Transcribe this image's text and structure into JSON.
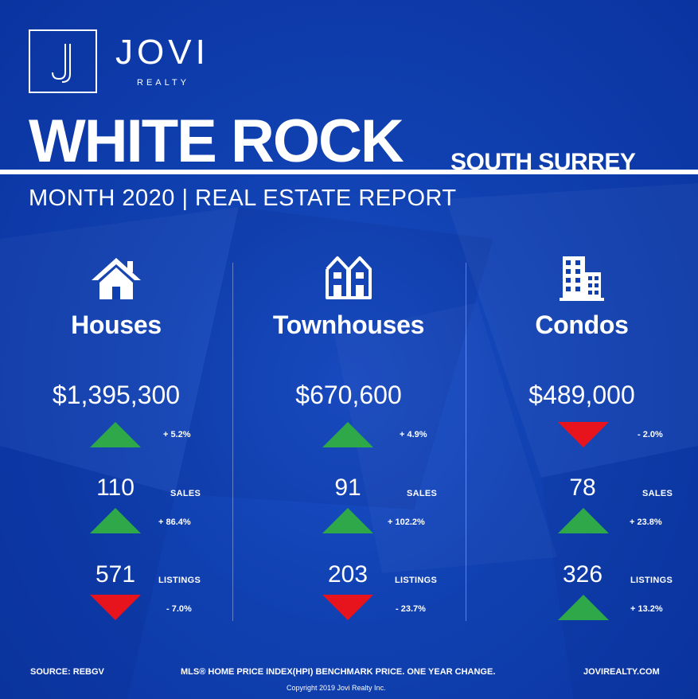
{
  "brand": {
    "name": "JOVI",
    "sub": "REALTY",
    "logo_letter": "J"
  },
  "title": {
    "main": "WHITE ROCK",
    "secondary": "SOUTH SURREY",
    "report": "MONTH 2020 | REAL ESTATE REPORT"
  },
  "colors": {
    "background": "#0d3fb0",
    "up": "#2fa84a",
    "down": "#e8141d",
    "text": "#ffffff"
  },
  "columns": [
    {
      "icon": "house-icon",
      "type": "Houses",
      "price": "$1,395,300",
      "price_change": "+ 5.2%",
      "price_dir": "up",
      "sales": "110",
      "sales_label": "SALES",
      "sales_change": "+ 86.4%",
      "sales_dir": "up",
      "listings": "571",
      "listings_label": "LISTINGS",
      "listings_change": "- 7.0%",
      "listings_dir": "down"
    },
    {
      "icon": "townhouse-icon",
      "type": "Townhouses",
      "price": "$670,600",
      "price_change": "+ 4.9%",
      "price_dir": "up",
      "sales": "91",
      "sales_label": "SALES",
      "sales_change": "+ 102.2%",
      "sales_dir": "up",
      "listings": "203",
      "listings_label": "LISTINGS",
      "listings_change": "- 23.7%",
      "listings_dir": "down"
    },
    {
      "icon": "condo-building-icon",
      "type": "Condos",
      "price": "$489,000",
      "price_change": "- 2.0%",
      "price_dir": "down",
      "sales": "78",
      "sales_label": "SALES",
      "sales_change": "+ 23.8%",
      "sales_dir": "up",
      "listings": "326",
      "listings_label": "LISTINGS",
      "listings_change": "+ 13.2%",
      "listings_dir": "up"
    }
  ],
  "footer": {
    "source": "SOURCE:  REBGV",
    "note": "MLS® HOME PRICE INDEX(HPI) BENCHMARK PRICE. ONE YEAR CHANGE.",
    "site": "JOVIREALTY.COM",
    "copyright": "Copyright 2019 Jovi Realty Inc."
  }
}
